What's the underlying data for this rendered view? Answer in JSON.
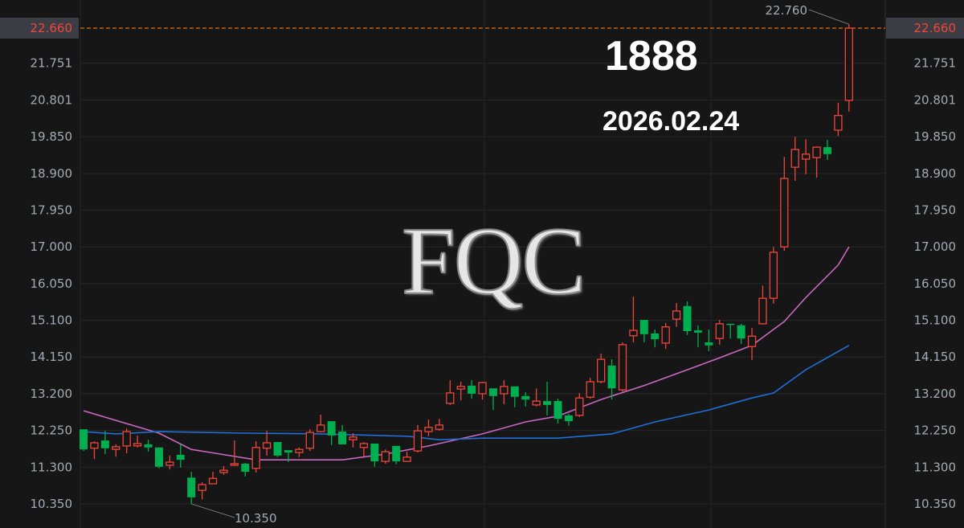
{
  "watermark": {
    "code": "1888",
    "date": "2026.02.24",
    "logo": "FQC"
  },
  "chart_data": {
    "type": "candlestick",
    "ylim": [
      10.0,
      22.9
    ],
    "y_ticks": [
      "22.660",
      "21.751",
      "20.801",
      "19.850",
      "18.900",
      "17.950",
      "17.000",
      "16.050",
      "15.100",
      "14.150",
      "13.200",
      "12.250",
      "11.300",
      "10.350"
    ],
    "grid": true,
    "current_price": {
      "value": 22.66,
      "label": "22.660",
      "color": "#f0453a",
      "line_color": "#e0701e"
    },
    "annotations": [
      {
        "label": "22.760",
        "value": 22.76,
        "bar": 71
      },
      {
        "label": "10.350",
        "value": 10.35,
        "bar": 10
      }
    ],
    "colors": {
      "up": "#f0453a",
      "down": "#00b050",
      "ma_short": "#c868c0",
      "ma_long": "#1f6fd8",
      "background": "#161616"
    },
    "candles_ohlc": [
      [
        12.28,
        12.28,
        11.72,
        11.76
      ],
      [
        11.79,
        11.97,
        11.51,
        11.93
      ],
      [
        11.99,
        12.24,
        11.64,
        11.79
      ],
      [
        11.76,
        11.89,
        11.57,
        11.83
      ],
      [
        11.85,
        12.3,
        11.66,
        12.22
      ],
      [
        11.85,
        12.12,
        11.81,
        11.91
      ],
      [
        11.89,
        12.01,
        11.7,
        11.81
      ],
      [
        11.81,
        11.81,
        11.27,
        11.31
      ],
      [
        11.35,
        11.6,
        11.24,
        11.43
      ],
      [
        11.62,
        11.89,
        11.29,
        11.49
      ],
      [
        11.03,
        11.18,
        10.35,
        10.52
      ],
      [
        10.7,
        10.91,
        10.47,
        10.85
      ],
      [
        10.87,
        11.18,
        10.87,
        11.01
      ],
      [
        11.16,
        11.33,
        11.1,
        11.22
      ],
      [
        11.35,
        11.99,
        11.33,
        11.39
      ],
      [
        11.39,
        11.41,
        11.06,
        11.18
      ],
      [
        11.27,
        11.97,
        11.16,
        11.81
      ],
      [
        11.79,
        12.24,
        11.6,
        11.93
      ],
      [
        11.95,
        11.95,
        11.56,
        11.6
      ],
      [
        11.74,
        11.74,
        11.43,
        11.68
      ],
      [
        11.68,
        11.81,
        11.56,
        11.76
      ],
      [
        11.79,
        12.28,
        11.72,
        12.2
      ],
      [
        12.22,
        12.66,
        12.2,
        12.39
      ],
      [
        12.49,
        12.49,
        11.87,
        12.12
      ],
      [
        12.22,
        12.39,
        11.89,
        11.89
      ],
      [
        12.01,
        12.18,
        11.81,
        12.08
      ],
      [
        11.81,
        11.95,
        11.57,
        11.91
      ],
      [
        11.91,
        11.91,
        11.31,
        11.45
      ],
      [
        11.45,
        11.76,
        11.39,
        11.7
      ],
      [
        11.85,
        11.85,
        11.37,
        11.45
      ],
      [
        11.45,
        11.7,
        11.45,
        11.56
      ],
      [
        11.72,
        12.39,
        11.68,
        12.24
      ],
      [
        12.22,
        12.53,
        12.1,
        12.33
      ],
      [
        12.28,
        12.55,
        12.24,
        12.39
      ],
      [
        12.95,
        13.55,
        12.91,
        13.22
      ],
      [
        13.32,
        13.51,
        13.03,
        13.39
      ],
      [
        13.41,
        13.55,
        13.07,
        13.2
      ],
      [
        13.2,
        13.51,
        13.05,
        13.49
      ],
      [
        13.34,
        13.34,
        12.78,
        13.14
      ],
      [
        13.2,
        13.55,
        12.93,
        13.39
      ],
      [
        13.39,
        13.39,
        12.85,
        13.12
      ],
      [
        13.14,
        13.24,
        12.87,
        13.05
      ],
      [
        12.91,
        13.34,
        12.87,
        13.01
      ],
      [
        13.01,
        13.51,
        12.64,
        12.91
      ],
      [
        13.01,
        13.07,
        12.43,
        12.55
      ],
      [
        12.64,
        12.68,
        12.37,
        12.49
      ],
      [
        12.64,
        13.22,
        12.6,
        13.09
      ],
      [
        13.11,
        13.61,
        13.07,
        13.51
      ],
      [
        13.51,
        14.24,
        13.47,
        14.09
      ],
      [
        13.93,
        14.09,
        13.05,
        13.34
      ],
      [
        13.3,
        14.53,
        13.26,
        14.47
      ],
      [
        14.7,
        15.71,
        14.53,
        14.84
      ],
      [
        15.11,
        15.11,
        14.53,
        14.74
      ],
      [
        14.76,
        14.86,
        14.4,
        14.61
      ],
      [
        14.51,
        15.03,
        14.36,
        14.93
      ],
      [
        15.13,
        15.55,
        14.93,
        15.34
      ],
      [
        15.47,
        15.59,
        14.72,
        14.82
      ],
      [
        14.84,
        14.97,
        14.4,
        14.78
      ],
      [
        14.53,
        14.86,
        14.3,
        14.45
      ],
      [
        14.63,
        15.11,
        14.47,
        15.01
      ],
      [
        15.01,
        15.01,
        14.63,
        14.99
      ],
      [
        14.97,
        15.01,
        14.49,
        14.63
      ],
      [
        14.42,
        14.9,
        14.07,
        14.69
      ],
      [
        15.01,
        16.0,
        14.99,
        15.67
      ],
      [
        15.67,
        17.0,
        15.53,
        16.86
      ],
      [
        17.0,
        19.33,
        16.9,
        18.77
      ],
      [
        19.06,
        19.85,
        18.71,
        19.52
      ],
      [
        19.27,
        19.79,
        18.88,
        19.4
      ],
      [
        19.31,
        19.6,
        18.79,
        19.58
      ],
      [
        19.58,
        19.77,
        19.25,
        19.4
      ],
      [
        20.02,
        20.73,
        19.87,
        20.4
      ],
      [
        20.79,
        22.76,
        20.5,
        22.66
      ]
    ],
    "ma_short": [
      [
        0,
        12.76
      ],
      [
        3,
        12.51
      ],
      [
        7,
        12.18
      ],
      [
        10,
        11.76
      ],
      [
        16,
        11.49
      ],
      [
        24,
        11.49
      ],
      [
        28,
        11.64
      ],
      [
        32,
        11.85
      ],
      [
        37,
        12.16
      ],
      [
        41,
        12.47
      ],
      [
        44,
        12.62
      ],
      [
        48,
        13.05
      ],
      [
        52,
        13.41
      ],
      [
        56,
        13.82
      ],
      [
        59,
        14.13
      ],
      [
        62,
        14.45
      ],
      [
        65,
        15.07
      ],
      [
        67,
        15.69
      ],
      [
        70,
        16.53
      ],
      [
        71,
        17.0
      ]
    ],
    "ma_long": [
      [
        0,
        12.22
      ],
      [
        3,
        12.16
      ],
      [
        7,
        12.22
      ],
      [
        15,
        12.18
      ],
      [
        22,
        12.16
      ],
      [
        30,
        12.1
      ],
      [
        33,
        12.01
      ],
      [
        37,
        12.05
      ],
      [
        44,
        12.05
      ],
      [
        49,
        12.16
      ],
      [
        53,
        12.47
      ],
      [
        58,
        12.78
      ],
      [
        62,
        13.09
      ],
      [
        64,
        13.22
      ],
      [
        67,
        13.82
      ],
      [
        71,
        14.45
      ]
    ]
  }
}
